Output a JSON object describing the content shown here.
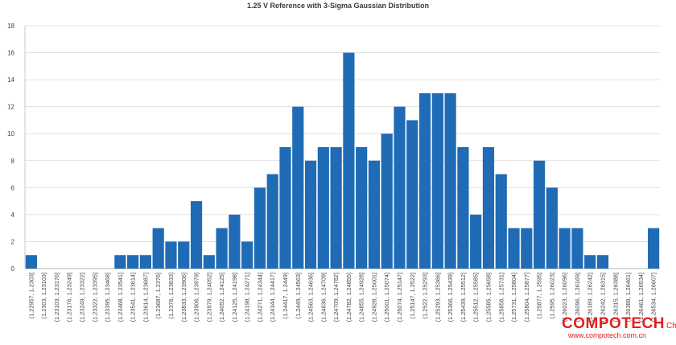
{
  "chart_data": {
    "type": "bar",
    "title": "1.25 V Reference with 3-Sigma Gaussian Distribution",
    "xlabel": "",
    "ylabel": "",
    "ylim": [
      0,
      18
    ],
    "yticks": [
      0,
      2,
      4,
      6,
      8,
      10,
      12,
      14,
      16,
      18
    ],
    "grid": "horizontal",
    "bar_color": "#1f6bb5",
    "categories": [
      "(1.22957, 1.2303]",
      "(1.2303, 1.23103]",
      "(1.23103, 1.23176]",
      "(1.23176, 1.23249]",
      "(1.23249, 1.23322]",
      "(1.23322, 1.23395]",
      "(1.23395, 1.23468]",
      "(1.23468, 1.23541]",
      "(1.23541, 1.23614]",
      "(1.23614, 1.23687]",
      "(1.23687, 1.2376]",
      "(1.2376, 1.23833]",
      "(1.23833, 1.23906]",
      "(1.23906, 1.23979]",
      "(1.23979, 1.24052]",
      "(1.24052, 1.24125]",
      "(1.24125, 1.24198]",
      "(1.24198, 1.24271]",
      "(1.24271, 1.24344]",
      "(1.24344, 1.24417]",
      "(1.24417, 1.2449]",
      "(1.2449, 1.24563]",
      "(1.24563, 1.24636]",
      "(1.24636, 1.24709]",
      "(1.24709, 1.24782]",
      "(1.24782, 1.24855]",
      "(1.24855, 1.24928]",
      "(1.24928, 1.25001]",
      "(1.25001, 1.25074]",
      "(1.25074, 1.25147]",
      "(1.25147, 1.2522]",
      "(1.2522, 1.25293]",
      "(1.25293, 1.25366]",
      "(1.25366, 1.25439]",
      "(1.25439, 1.25512]",
      "(1.25512, 1.25585]",
      "(1.25585, 1.25658]",
      "(1.25658, 1.25731]",
      "(1.25731, 1.25804]",
      "(1.25804, 1.25877]",
      "(1.25877, 1.2595]",
      "(1.2595, 1.26023]",
      "(1.26023, 1.26096]",
      "(1.26096, 1.26169]",
      "(1.26169, 1.26242]",
      "(1.26242, 1.26315]",
      "(1.26315, 1.26388]",
      "(1.26388, 1.26461]",
      "(1.26461, 1.26534]",
      "(1.26534, 1.26607]"
    ],
    "values": [
      1,
      0,
      0,
      0,
      0,
      0,
      0,
      1,
      1,
      1,
      3,
      2,
      2,
      5,
      1,
      3,
      4,
      2,
      6,
      7,
      9,
      12,
      8,
      9,
      9,
      16,
      9,
      8,
      10,
      12,
      11,
      13,
      13,
      13,
      9,
      4,
      9,
      7,
      3,
      3,
      8,
      6,
      3,
      3,
      1,
      1,
      0,
      0,
      0,
      3
    ]
  },
  "watermark": {
    "brand": "COMPOTECH",
    "region": "China",
    "url": "www.compotech.com.cn"
  }
}
